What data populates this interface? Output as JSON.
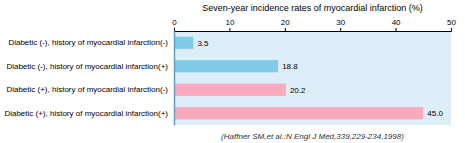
{
  "chart_data": {
    "type": "bar",
    "orientation": "horizontal",
    "title": "Seven-year incidence rates of myocardial infarction (%)",
    "categories": [
      "Diabetic (-), history of myocardial infarction(-)",
      "Diabetic (-), history of myocardial infarction(+)",
      "Diabetic (+), history of myocardial infarction(-)",
      "Diabetic (+), history of myocardial infarction(+)"
    ],
    "values": [
      3.5,
      18.8,
      20.2,
      45.0
    ],
    "value_labels": [
      "3.5",
      "18.8",
      "20.2",
      "45.0"
    ],
    "colors": [
      "#7eccea",
      "#7eccea",
      "#f9aabf",
      "#f9aabf"
    ],
    "xlim": [
      0,
      50
    ],
    "xticks": [
      0,
      10,
      20,
      30,
      40,
      50
    ],
    "data_labels": true,
    "grid": false,
    "annotations": [
      "(Haffner SM,et al.:N Engl J Med,339,229-234,1998)"
    ]
  }
}
